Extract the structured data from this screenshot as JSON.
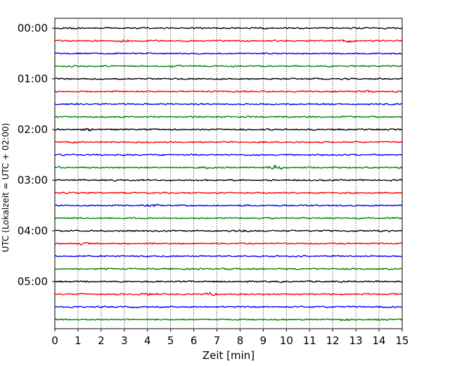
{
  "chart_data": {
    "type": "line",
    "title": "",
    "xlabel": "Zeit  [min]",
    "ylabel": "UTC (Lokalzeit = UTC + 02:00)",
    "xlim": [
      0,
      15
    ],
    "x_ticks": [
      0,
      1,
      2,
      3,
      4,
      5,
      6,
      7,
      8,
      9,
      10,
      11,
      12,
      13,
      14,
      15
    ],
    "y_ticks": [
      "00:00",
      "01:00",
      "02:00",
      "03:00",
      "04:00",
      "05:00"
    ],
    "traces_per_hour": 4,
    "trace_interval_min": 15,
    "trace_count": 24,
    "trace_colors": [
      "#000000",
      "#ff0000",
      "#0000ff",
      "#008000"
    ],
    "grid": "vertical dotted lines at each minute",
    "events": [
      {
        "trace": 1,
        "minute": 3.0,
        "amp": 1.6
      },
      {
        "trace": 1,
        "minute": 12.7,
        "amp": 1.8
      },
      {
        "trace": 3,
        "minute": 5.1,
        "amp": 1.4
      },
      {
        "trace": 5,
        "minute": 13.4,
        "amp": 1.2
      },
      {
        "trace": 8,
        "minute": 1.5,
        "amp": 1.4
      },
      {
        "trace": 11,
        "minute": 9.5,
        "amp": 3.5
      },
      {
        "trace": 11,
        "minute": 6.5,
        "amp": 1.3
      },
      {
        "trace": 14,
        "minute": 4.3,
        "amp": 1.3
      },
      {
        "trace": 16,
        "minute": 8.0,
        "amp": 1.5
      },
      {
        "trace": 17,
        "minute": 1.1,
        "amp": 1.4
      },
      {
        "trace": 21,
        "minute": 6.7,
        "amp": 1.8
      },
      {
        "trace": 21,
        "minute": 4.1,
        "amp": 1.3
      },
      {
        "trace": 23,
        "minute": 12.6,
        "amp": 1.4
      },
      {
        "trace": 23,
        "minute": 14.2,
        "amp": 1.4
      }
    ]
  }
}
